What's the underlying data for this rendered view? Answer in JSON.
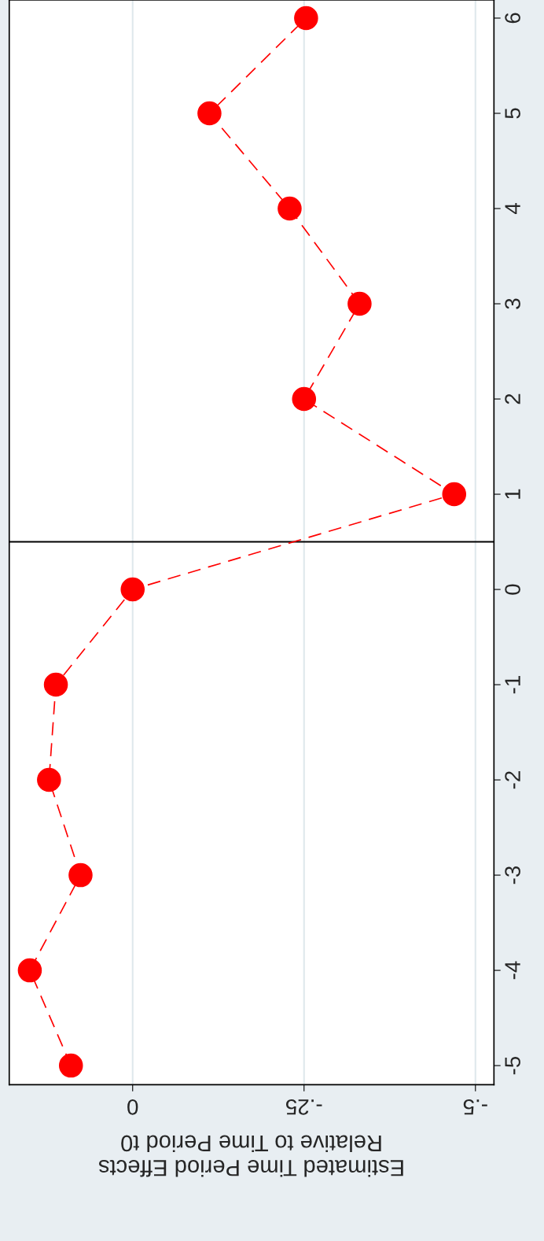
{
  "chart_data": {
    "type": "line",
    "xlabel": "Estimated Time Period Effects\nRelative to Time Period t0",
    "series": [
      {
        "color": "#ff0000",
        "x": [
          0.09,
          0.15,
          0.076,
          0.122,
          0.112,
          0,
          -0.469,
          -0.25,
          -0.331,
          -0.229,
          -0.112,
          -0.253
        ],
        "values": [
          -5,
          -4,
          -3,
          -2,
          -1,
          0,
          1,
          2,
          3,
          4,
          5,
          6
        ]
      }
    ],
    "ylim": [
      -5.2,
      6.19
    ],
    "yticks": [
      -5,
      -4,
      -3,
      -2,
      -1,
      0,
      1,
      2,
      3,
      4,
      5,
      6
    ],
    "xlim": [
      0.18,
      -0.527
    ],
    "xticks": [
      {
        "value": -0.5,
        "label": "-.5"
      },
      {
        "value": -0.25,
        "label": "-.25"
      },
      0
    ],
    "ref_lines": [
      {
        "axis": "y",
        "value": 0.5,
        "color": "#000000"
      }
    ],
    "grid": "x",
    "marker": "circle",
    "line_style": "dashed"
  }
}
